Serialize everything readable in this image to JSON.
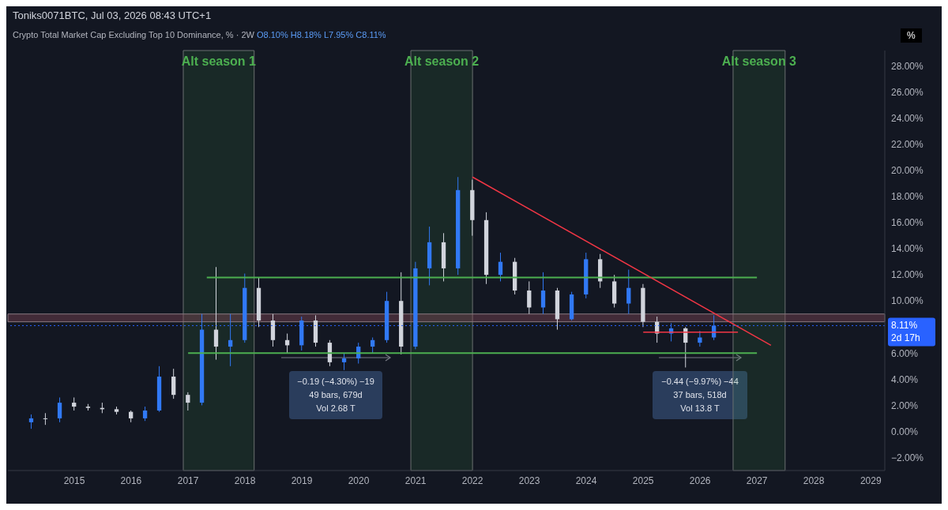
{
  "chart_data": {
    "type": "candlestick",
    "title": "Crypto Total Market Cap Excluding Top 10 Dominance, % · 2W",
    "subtitle": "Toniks0071BTC, Jul 03, 2026 08:43 UTC+1",
    "ylabel": "%",
    "x": [
      "2014-04",
      "2014-07",
      "2014-10",
      "2015-01",
      "2015-04",
      "2015-07",
      "2015-10",
      "2016-01",
      "2016-04",
      "2016-07",
      "2016-10",
      "2017-01",
      "2017-04",
      "2017-07",
      "2017-10",
      "2018-01",
      "2018-04",
      "2018-07",
      "2018-10",
      "2019-01",
      "2019-04",
      "2019-07",
      "2019-10",
      "2020-01",
      "2020-04",
      "2020-07",
      "2020-10",
      "2021-01",
      "2021-04",
      "2021-07",
      "2021-10",
      "2022-01",
      "2022-04",
      "2022-07",
      "2022-10",
      "2023-01",
      "2023-04",
      "2023-07",
      "2023-10",
      "2024-01",
      "2024-04",
      "2024-07",
      "2024-10",
      "2025-01",
      "2025-04",
      "2025-07",
      "2025-10",
      "2026-01",
      "2026-04"
    ],
    "ohlc": [
      [
        0.7,
        1.3,
        0.2,
        1.0
      ],
      [
        1.0,
        1.4,
        0.5,
        1.0
      ],
      [
        1.0,
        2.6,
        0.7,
        2.2
      ],
      [
        2.2,
        2.6,
        1.6,
        1.9
      ],
      [
        1.9,
        2.1,
        1.6,
        1.8
      ],
      [
        1.8,
        2.2,
        1.4,
        1.7
      ],
      [
        1.7,
        1.9,
        1.3,
        1.5
      ],
      [
        1.5,
        1.6,
        0.7,
        1.0
      ],
      [
        1.0,
        1.9,
        0.8,
        1.6
      ],
      [
        1.6,
        5.0,
        1.5,
        4.2
      ],
      [
        4.2,
        4.8,
        2.5,
        2.8
      ],
      [
        2.8,
        3.0,
        1.6,
        2.2
      ],
      [
        2.2,
        9.0,
        2.0,
        7.8
      ],
      [
        7.8,
        12.6,
        5.5,
        6.5
      ],
      [
        6.5,
        9.0,
        5.0,
        7.0
      ],
      [
        7.0,
        12.1,
        6.8,
        11.0
      ],
      [
        11.0,
        11.8,
        8.0,
        8.5
      ],
      [
        8.5,
        9.0,
        6.5,
        7.0
      ],
      [
        7.0,
        7.5,
        6.0,
        6.6
      ],
      [
        6.6,
        8.8,
        6.2,
        8.5
      ],
      [
        8.5,
        8.9,
        6.5,
        6.8
      ],
      [
        6.8,
        7.0,
        5.0,
        5.3
      ],
      [
        5.3,
        6.0,
        4.7,
        5.6
      ],
      [
        5.6,
        6.8,
        5.2,
        6.5
      ],
      [
        6.5,
        7.2,
        6.0,
        7.0
      ],
      [
        7.0,
        10.7,
        6.8,
        10.0
      ],
      [
        10.0,
        12.2,
        5.9,
        6.5
      ],
      [
        6.5,
        13.0,
        6.3,
        12.5
      ],
      [
        12.5,
        15.7,
        11.2,
        14.5
      ],
      [
        14.5,
        15.2,
        11.5,
        12.5
      ],
      [
        12.5,
        19.5,
        12.0,
        18.5
      ],
      [
        18.5,
        19.3,
        15.0,
        16.2
      ],
      [
        16.2,
        16.8,
        11.3,
        12.0
      ],
      [
        12.0,
        13.7,
        11.5,
        13.0
      ],
      [
        13.0,
        13.3,
        10.5,
        10.8
      ],
      [
        10.8,
        11.5,
        9.0,
        9.5
      ],
      [
        9.5,
        12.2,
        9.0,
        10.8
      ],
      [
        10.8,
        11.0,
        7.8,
        8.6
      ],
      [
        8.6,
        10.7,
        8.5,
        10.5
      ],
      [
        10.5,
        13.7,
        10.2,
        13.2
      ],
      [
        13.2,
        13.6,
        11.0,
        11.5
      ],
      [
        11.5,
        12.0,
        9.5,
        9.8
      ],
      [
        9.8,
        12.4,
        9.0,
        11.0
      ],
      [
        11.0,
        11.3,
        8.0,
        8.4
      ],
      [
        8.4,
        8.8,
        6.8,
        7.5
      ],
      [
        7.5,
        8.3,
        6.9,
        7.9
      ],
      [
        7.9,
        8.0,
        4.9,
        6.8
      ],
      [
        6.8,
        7.7,
        6.5,
        7.2
      ],
      [
        7.2,
        8.9,
        7.0,
        8.11
      ]
    ],
    "colors": [
      "#3179f5",
      "#d1d4dc",
      "#3179f5",
      "#d1d4dc",
      "#d1d4dc",
      "#d1d4dc",
      "#d1d4dc",
      "#d1d4dc",
      "#3179f5",
      "#3179f5",
      "#d1d4dc",
      "#d1d4dc",
      "#3179f5",
      "#d1d4dc",
      "#3179f5",
      "#3179f5",
      "#d1d4dc",
      "#d1d4dc",
      "#d1d4dc",
      "#3179f5",
      "#d1d4dc",
      "#d1d4dc",
      "#3179f5",
      "#3179f5",
      "#3179f5",
      "#3179f5",
      "#d1d4dc",
      "#3179f5",
      "#3179f5",
      "#d1d4dc",
      "#3179f5",
      "#d1d4dc",
      "#d1d4dc",
      "#3179f5",
      "#d1d4dc",
      "#d1d4dc",
      "#3179f5",
      "#d1d4dc",
      "#3179f5",
      "#3179f5",
      "#d1d4dc",
      "#d1d4dc",
      "#3179f5",
      "#d1d4dc",
      "#d1d4dc",
      "#3179f5",
      "#d1d4dc",
      "#3179f5",
      "#3179f5"
    ],
    "series": [
      {
        "type": "line",
        "color": "#4caf50",
        "x": [
          "2017-05",
          "2027-01"
        ],
        "values": [
          11.8,
          11.8
        ]
      },
      {
        "type": "line",
        "color": "#4caf50",
        "x": [
          "2017-01",
          "2027-01"
        ],
        "values": [
          6.0,
          6.0
        ]
      },
      {
        "type": "line",
        "color": "#f23645",
        "x": [
          "2022-01",
          "2027-04"
        ],
        "values": [
          19.5,
          6.6
        ]
      },
      {
        "type": "line",
        "color": "#f23645",
        "x": [
          "2025-01",
          "2026-09"
        ],
        "values": [
          7.6,
          7.6
        ]
      }
    ],
    "bands": [
      {
        "axis": "x",
        "from": "2016-12",
        "to": "2018-03",
        "label": "Alt season 1",
        "color": "#4caf50"
      },
      {
        "axis": "x",
        "from": "2020-12",
        "to": "2022-01",
        "label": "Alt season 2",
        "color": "#4caf50"
      },
      {
        "axis": "x",
        "from": "2026-08",
        "to": "2027-07",
        "label": "Alt season 3",
        "color": "#4caf50"
      },
      {
        "axis": "y",
        "from": 8.4,
        "to": 9.0,
        "color": "#8a4a5a"
      }
    ],
    "ref_lines": [
      {
        "axis": "y",
        "value": 8.11,
        "label": "8.11%",
        "color": "#2962ff",
        "line_style": "dotted"
      }
    ],
    "annotations": [
      "O8.10% H8.18% L7.95% C8.11%",
      "−0.19 (−4.30%) −19\n49 bars, 679d\nVol 2.68 T",
      "−0.44 (−9.97%) −44\n37 bars, 518d\nVol 13.8 T",
      "2d 17h"
    ],
    "xlim": [
      "2013-11",
      "2029-04"
    ],
    "xticks": [
      "2015",
      "2016",
      "2017",
      "2018",
      "2019",
      "2020",
      "2021",
      "2022",
      "2023",
      "2024",
      "2025",
      "2026",
      "2027",
      "2028",
      "2029"
    ],
    "ylim": [
      -3,
      29.2
    ],
    "yticks": [
      {
        "value": -2,
        "label": "−2.00%"
      },
      {
        "value": 0,
        "label": "0.00%"
      },
      {
        "value": 2,
        "label": "2.00%"
      },
      {
        "value": 4,
        "label": "4.00%"
      },
      {
        "value": 6,
        "label": "6.00%"
      },
      {
        "value": 10,
        "label": "10.00%"
      },
      {
        "value": 12,
        "label": "12.00%"
      },
      {
        "value": 14,
        "label": "14.00%"
      },
      {
        "value": 16,
        "label": "16.00%"
      },
      {
        "value": 18,
        "label": "18.00%"
      },
      {
        "value": 20,
        "label": "20.00%"
      },
      {
        "value": 22,
        "label": "22.00%"
      },
      {
        "value": 24,
        "label": "24.00%"
      },
      {
        "value": 26,
        "label": "26.00%"
      },
      {
        "value": 28,
        "label": "28.00%"
      }
    ]
  }
}
